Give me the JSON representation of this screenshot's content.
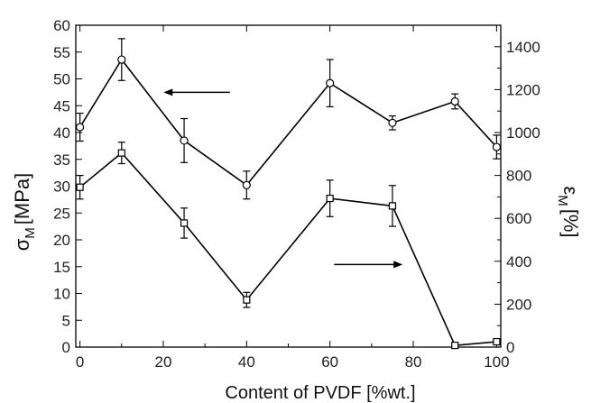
{
  "chart_data": {
    "type": "line",
    "xlabel": "Content of PVDF [%wt.]",
    "ylabel_left": {
      "main": "σ",
      "sub": "M",
      "unit": "[MPa]"
    },
    "ylabel_right": {
      "main": "ε",
      "sub": "M",
      "unit": "[%]"
    },
    "xlim": [
      -1,
      101
    ],
    "ylim_left": [
      0,
      60
    ],
    "ylim_right": [
      0,
      1500
    ],
    "x_ticks": [
      0,
      20,
      40,
      60,
      80,
      100
    ],
    "y_left_ticks": [
      0,
      5,
      10,
      15,
      20,
      25,
      30,
      35,
      40,
      45,
      50,
      55,
      60
    ],
    "y_right_ticks": [
      0,
      200,
      400,
      600,
      800,
      1000,
      1200,
      1400
    ],
    "grid": false,
    "series": [
      {
        "axis": "left",
        "marker": "circle",
        "arrow_direction": "left",
        "x": [
          0,
          10,
          25,
          40,
          60,
          75,
          90,
          100
        ],
        "values": [
          41,
          53.6,
          38.5,
          30.2,
          49.2,
          41.8,
          45.8,
          37.3
        ],
        "errors": [
          2.6,
          3.9,
          4.1,
          2.6,
          4.4,
          1.3,
          1.4,
          2.2
        ]
      },
      {
        "axis": "right",
        "marker": "square",
        "arrow_direction": "right",
        "x": [
          0,
          10,
          25,
          40,
          60,
          75,
          90,
          100
        ],
        "values": [
          745,
          905,
          578,
          220,
          693,
          658,
          8,
          25
        ],
        "errors": [
          55,
          50,
          70,
          35,
          85,
          95,
          5,
          5
        ]
      }
    ]
  }
}
